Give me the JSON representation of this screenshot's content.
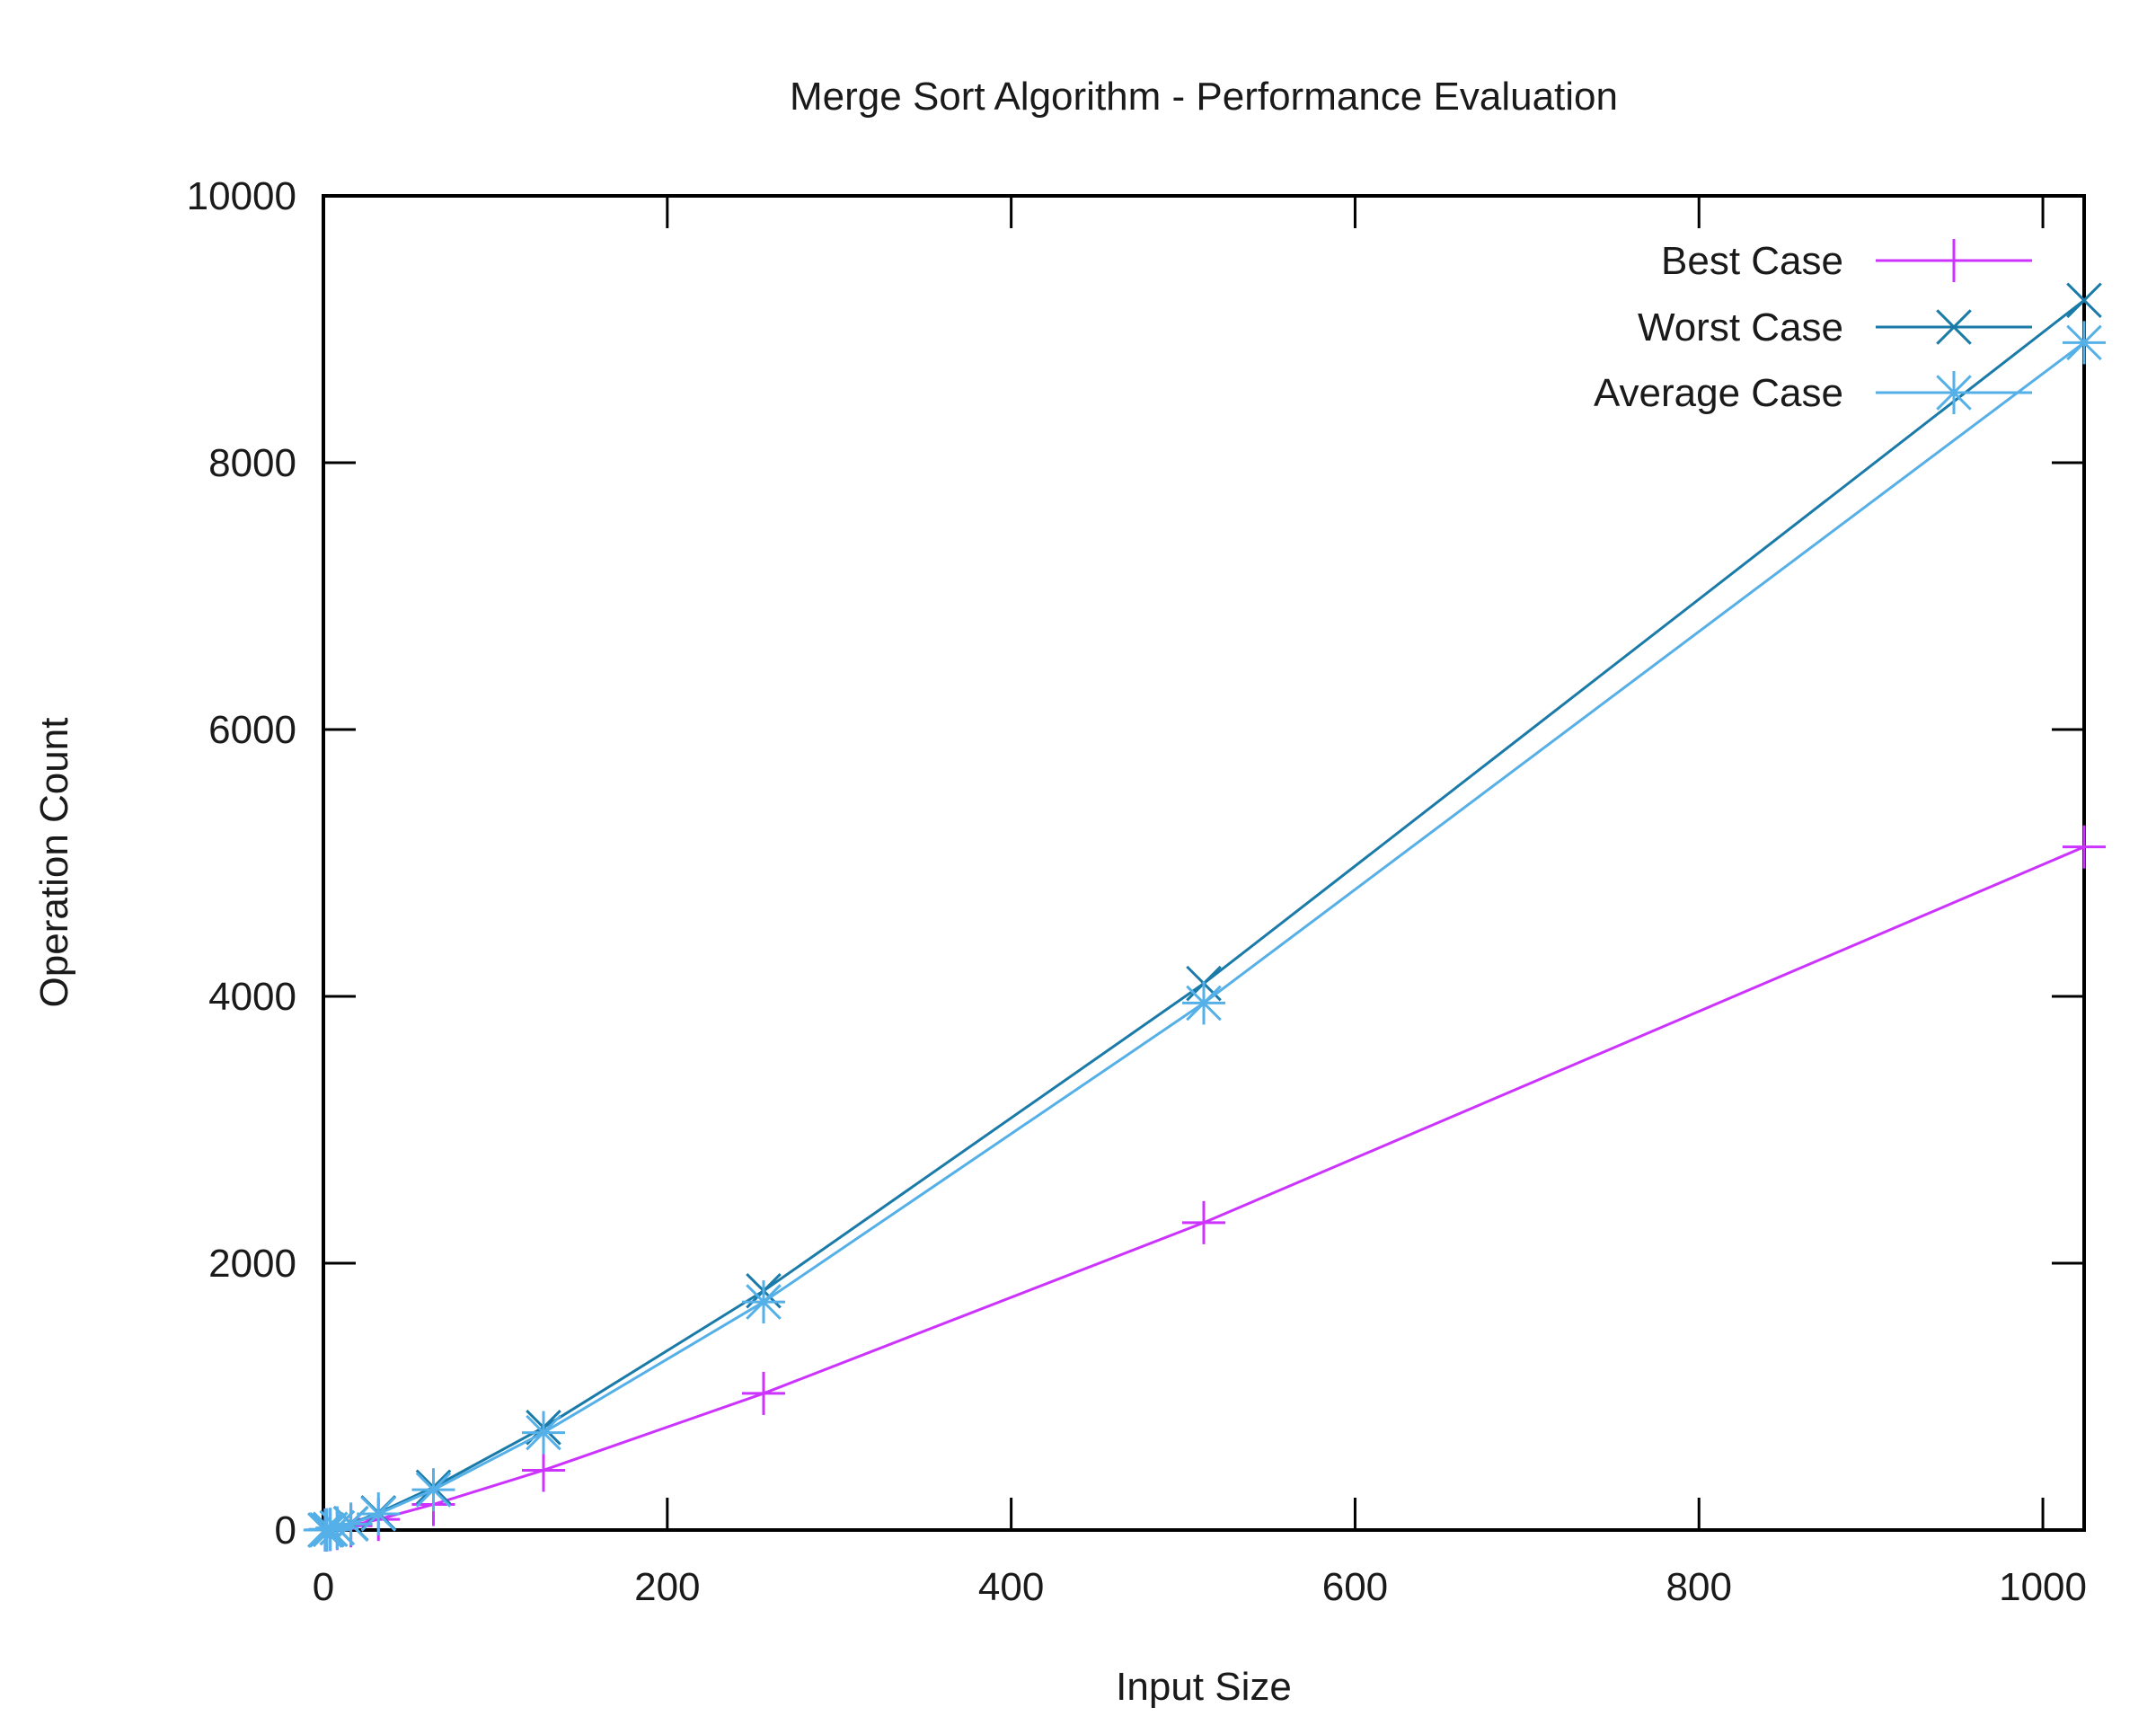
{
  "chart_data": {
    "type": "line",
    "title": "Merge Sort Algorithm - Performance Evaluation",
    "xlabel": "Input Size",
    "ylabel": "Operation Count",
    "xlim": [
      0,
      1024
    ],
    "ylim": [
      0,
      10000
    ],
    "xticks": [
      0,
      200,
      400,
      600,
      800,
      1000
    ],
    "yticks": [
      0,
      2000,
      4000,
      6000,
      8000,
      10000
    ],
    "xtick_labels": [
      "0",
      "200",
      "400",
      "600",
      "800",
      "1000"
    ],
    "ytick_labels": [
      "0",
      "2000",
      "4000",
      "6000",
      "8000",
      "10000"
    ],
    "grid": false,
    "legend_position": "top-right",
    "x": [
      1,
      2,
      4,
      8,
      16,
      32,
      64,
      128,
      256,
      512,
      1024
    ],
    "series": [
      {
        "name": "Best Case",
        "color": "#cc33ff",
        "marker": "plus",
        "values": [
          0,
          1,
          4,
          12,
          32,
          80,
          192,
          448,
          1024,
          2304,
          5120
        ]
      },
      {
        "name": "Worst Case",
        "color": "#1a7aa8",
        "marker": "cross",
        "values": [
          0,
          1,
          5,
          17,
          49,
          129,
          321,
          769,
          1793,
          4097,
          9217
        ]
      },
      {
        "name": "Average Case",
        "color": "#55b0e8",
        "marker": "asterisk",
        "values": [
          0,
          1,
          5,
          16,
          45,
          121,
          302,
          730,
          1710,
          3950,
          8900
        ]
      }
    ]
  }
}
